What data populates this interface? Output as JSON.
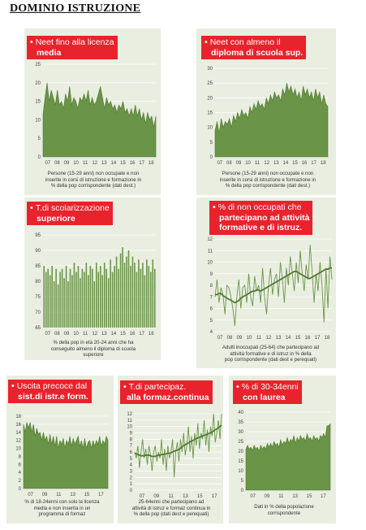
{
  "page": {
    "title": "DOMINIO ISTRUZIONE"
  },
  "colors": {
    "panel_bg": "#e9eee1",
    "green": "#6a9447",
    "green_dark": "#4f7a33",
    "title_red": "#e8232b",
    "grid": "#ffffff"
  },
  "chart_data": [
    {
      "id": "neet-licenza",
      "type": "area",
      "title_lines": [
        "Neet fino alla licenza",
        "media"
      ],
      "caption_lines": [
        "Persone (15-29 anni) non occupate e non",
        "inserite in corsi di istruzione e formazione in",
        "% della pop corrispondente (dati dest.)"
      ],
      "yticks": [
        0,
        5,
        10,
        15,
        20,
        25
      ],
      "ylim": [
        0,
        25
      ],
      "xtick_labels": [
        "07",
        "08",
        "09",
        "10",
        "11",
        "12",
        "13",
        "14",
        "15",
        "16",
        "17",
        "18"
      ],
      "values": [
        11.5,
        16,
        20,
        15,
        18,
        16,
        14,
        18,
        14,
        15,
        13,
        17,
        15,
        19,
        14,
        16,
        15,
        13,
        16,
        15,
        17,
        15,
        18,
        14,
        16,
        14,
        15,
        17,
        19,
        16,
        13,
        16,
        14,
        15,
        13,
        14,
        12,
        14,
        13,
        15,
        12,
        13,
        11,
        13,
        11,
        14,
        11,
        13,
        10,
        12,
        9,
        12,
        10,
        11,
        8,
        11
      ]
    },
    {
      "id": "neet-diploma",
      "type": "area",
      "title_lines": [
        "Neet con almeno il",
        "diploma di scuola sup."
      ],
      "caption_lines": [
        "Persone (15-29 anni) non occupate e non",
        "inserite in corsi di istruzione e formazione in",
        "% della pop corrispondente (dati dest.)"
      ],
      "yticks": [
        0,
        5,
        10,
        15,
        20,
        25,
        30
      ],
      "ylim": [
        0,
        30
      ],
      "xtick_labels": [
        "07",
        "08",
        "09",
        "10",
        "11",
        "12",
        "13",
        "14",
        "15",
        "16",
        "17",
        "18"
      ],
      "values": [
        9,
        12,
        8,
        13,
        10,
        12,
        11,
        13,
        10,
        14,
        12,
        15,
        13,
        16,
        14,
        15,
        13,
        17,
        15,
        18,
        16,
        19,
        17,
        18,
        16,
        20,
        18,
        21,
        19,
        22,
        20,
        21,
        19,
        23,
        21,
        25,
        22,
        24,
        21,
        23,
        20,
        22,
        19,
        24,
        21,
        23,
        20,
        22,
        19,
        23,
        20,
        22,
        18,
        21,
        18,
        17
      ]
    },
    {
      "id": "scolarizzazione",
      "type": "bar",
      "title_lines": [
        "T.di scolarizzazione",
        "superiore"
      ],
      "caption_lines": [
        "% della pop in età 20-24 anni che ha",
        "conseguito almeno il diploma di scuola",
        "superiore"
      ],
      "yticks": [
        65,
        70,
        75,
        80,
        85,
        90,
        95
      ],
      "ylim": [
        65,
        95
      ],
      "xtick_labels": [
        "07",
        "08",
        "09",
        "10",
        "11",
        "12",
        "13",
        "14",
        "15",
        "16",
        "17",
        "18"
      ],
      "values": [
        85,
        83,
        84,
        82,
        85,
        80,
        84,
        79,
        83,
        84,
        81,
        85,
        80,
        84,
        82,
        86,
        83,
        85,
        81,
        84,
        83,
        86,
        82,
        85,
        84,
        80,
        86,
        83,
        85,
        82,
        86,
        84,
        81,
        87,
        83,
        85,
        88,
        84,
        89,
        91,
        86,
        88,
        90,
        85,
        88,
        86,
        83,
        87,
        84,
        86,
        82,
        87,
        85,
        83,
        87,
        84
      ]
    },
    {
      "id": "formazione-continua",
      "type": "line",
      "title_lines": [
        "% di non occupati che",
        "partecipano ad attività",
        "formative e di istruz."
      ],
      "caption_lines": [
        "Adulti inoccupati (25-64) che partecipano ad",
        "attività formative e di istruz in % della",
        "pop corrispondente (dati dest e perequati)"
      ],
      "yticks": [
        4,
        5,
        6,
        7,
        8,
        9,
        10,
        11,
        12
      ],
      "ylim": [
        4,
        12
      ],
      "xtick_labels": [
        "07",
        "08",
        "09",
        "10",
        "11",
        "12",
        "13",
        "14",
        "15",
        "16",
        "17",
        "18"
      ],
      "series": [
        {
          "values": [
            7,
            8.5,
            6.5,
            7.8,
            7.2,
            5.5,
            8,
            7.8,
            7,
            6,
            4.5,
            7,
            8.5,
            6,
            7.8,
            8,
            6.5,
            9,
            7,
            6.2,
            8.8,
            7.5,
            8,
            6.5,
            9.5,
            7,
            5.5,
            8,
            9.5,
            7.2,
            8.5,
            9,
            7,
            10,
            8.5,
            6.5,
            9.5,
            8,
            10.5,
            9,
            7.5,
            10,
            8.2,
            11,
            9,
            7.5,
            9.8,
            8.5,
            11.5,
            9.2,
            6.5,
            9,
            7.5,
            10,
            8,
            4.8,
            9.5,
            6,
            10.5,
            8.5
          ]
        },
        {
          "values": [
            7.2,
            7.2,
            7.3,
            7.3,
            7.1,
            7,
            6.9,
            6.8,
            6.7,
            6.6,
            6.5,
            6.6,
            6.7,
            6.9,
            7,
            7.1,
            7.2,
            7.3,
            7.4,
            7.5,
            7.5,
            7.6,
            7.6,
            7.5,
            7.6,
            7.7,
            7.8,
            7.9,
            8,
            8.1,
            8.2,
            8.3,
            8.4,
            8.5,
            8.6,
            8.7,
            8.8,
            8.9,
            9,
            9.1,
            9.2,
            9.2,
            9.1,
            9,
            8.9,
            8.8,
            8.7,
            8.6,
            8.6,
            8.7,
            8.8,
            8.9,
            9,
            9.1,
            9.2,
            9.3,
            9.4,
            9.4,
            9.5,
            9.5
          ]
        }
      ]
    },
    {
      "id": "uscita-precoce",
      "type": "area",
      "title_lines": [
        "Uscita precoce dal",
        "sist.di istr.e form."
      ],
      "caption_lines": [
        "% di 18-24enni con solo la licenza",
        "media e non inserita in un",
        "programma di formaz"
      ],
      "yticks": [
        0,
        2,
        4,
        6,
        8,
        10,
        12,
        14,
        16,
        18
      ],
      "ylim": [
        0,
        18
      ],
      "xtick_labels": [
        "07",
        "09",
        "11",
        "13",
        "15",
        "17"
      ],
      "values": [
        16,
        14,
        16.5,
        15,
        16.5,
        14,
        16,
        13,
        15,
        13.5,
        14,
        12,
        14,
        12,
        13,
        11,
        13.5,
        11,
        13,
        10.5,
        13,
        10,
        12,
        11,
        12.5,
        10,
        12,
        11,
        13,
        10.5,
        12.5,
        11,
        12,
        13,
        10.5,
        12,
        10,
        12.5,
        10,
        11.5,
        12,
        10,
        12,
        10.5,
        12,
        11,
        13,
        10.5,
        12,
        11,
        13,
        12
      ]
    },
    {
      "id": "partecipaz-formaz",
      "type": "line",
      "title_lines": [
        "T.di partecipaz.",
        "alla formaz.continua"
      ],
      "caption_lines": [
        "25-64enni che partecipano ad",
        "attività di istruz e formaz continua in",
        "% della pop (dati dest e perequati)"
      ],
      "yticks": [
        0,
        1,
        2,
        3,
        4,
        5,
        6,
        7,
        8,
        9,
        10,
        11,
        12
      ],
      "ylim": [
        0,
        12
      ],
      "xtick_labels": [
        "07",
        "09",
        "11",
        "13",
        "15",
        "17"
      ],
      "series": [
        {
          "values": [
            6,
            5,
            7,
            3.5,
            6,
            8,
            5,
            6.5,
            4,
            7,
            5.5,
            3,
            6,
            7,
            4.5,
            6,
            5,
            8,
            4,
            6.5,
            3,
            7,
            5,
            6,
            8,
            2,
            6,
            7.5,
            4.5,
            8,
            6,
            9,
            5.5,
            7,
            10,
            6,
            8.5,
            5,
            9,
            7,
            10.5,
            6.5,
            9,
            8,
            11,
            7,
            9.5,
            6,
            10,
            8.5,
            12,
            7.5,
            9,
            11,
            8,
            12
          ]
        },
        {
          "values": [
            5.8,
            5.7,
            5.6,
            5.5,
            5.4,
            5.4,
            5.4,
            5.5,
            5.5,
            5.5,
            5.4,
            5.3,
            5.3,
            5.3,
            5.4,
            5.5,
            5.5,
            5.6,
            5.6,
            5.7,
            5.7,
            5.8,
            5.8,
            5.9,
            6,
            6.1,
            6.2,
            6.3,
            6.4,
            6.6,
            6.8,
            7,
            7.1,
            7.3,
            7.4,
            7.6,
            7.7,
            7.8,
            8,
            8.1,
            8.2,
            8.3,
            8.4,
            8.5,
            8.6,
            8.7,
            8.8,
            8.9,
            9,
            9.1,
            9.3,
            9.5,
            9.6,
            9.8,
            10,
            10.2
          ]
        }
      ]
    },
    {
      "id": "trentenni-laurea",
      "type": "area",
      "title_lines": [
        "% di 30-34enni",
        "con laurea"
      ],
      "caption_lines": [
        "Dati in % della popolazione",
        "corrispondente"
      ],
      "yticks": [
        0,
        5,
        10,
        15,
        20,
        25,
        30,
        35,
        40
      ],
      "ylim": [
        0,
        40
      ],
      "xtick_labels": [
        "07",
        "09",
        "11",
        "13",
        "15",
        "17"
      ],
      "values": [
        21,
        23,
        21,
        22,
        20.5,
        23,
        21,
        22,
        20,
        23,
        21,
        22.5,
        21,
        24,
        22,
        24,
        22,
        25,
        23,
        24,
        22,
        26,
        23,
        25,
        24,
        27,
        24,
        26,
        25,
        28,
        24,
        27,
        25,
        28,
        26,
        27,
        25,
        29,
        26,
        27,
        25,
        28,
        26,
        27,
        25,
        28,
        27,
        29,
        27,
        33,
        33,
        34
      ]
    }
  ]
}
